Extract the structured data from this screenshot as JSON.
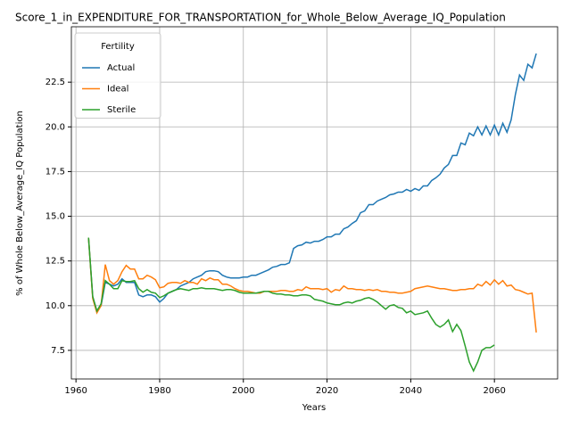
{
  "chart_data": {
    "type": "line",
    "title": "Score_1_in_EXPENDITURE_FOR_TRANSPORTATION_for_Whole_Below_Average_IQ_Population",
    "x_label": "Years",
    "y_label": "% of Whole Below_Average_IQ Population",
    "legend_title": "Fertility",
    "legend_position": "upper left",
    "grid": true,
    "xlim": [
      1958.9,
      2075.1
    ],
    "ylim": [
      5.9,
      25.6
    ],
    "xticks": [
      1960,
      1980,
      2000,
      2020,
      2040,
      2060
    ],
    "yticks": [
      7.5,
      {
        "value": 10,
        "label": "10.0"
      },
      12.5,
      {
        "value": 15,
        "label": "15.0"
      },
      17.5,
      {
        "value": 20,
        "label": "20.0"
      },
      22.5
    ],
    "x": [
      1963,
      1964,
      1965,
      1966,
      1967,
      1968,
      1969,
      1970,
      1971,
      1972,
      1973,
      1974,
      1975,
      1976,
      1977,
      1978,
      1979,
      1980,
      1981,
      1982,
      1983,
      1984,
      1985,
      1986,
      1987,
      1988,
      1989,
      1990,
      1991,
      1992,
      1993,
      1994,
      1995,
      1996,
      1997,
      1998,
      1999,
      2000,
      2001,
      2002,
      2003,
      2004,
      2005,
      2006,
      2007,
      2008,
      2009,
      2010,
      2011,
      2012,
      2013,
      2014,
      2015,
      2016,
      2017,
      2018,
      2019,
      2020,
      2021,
      2022,
      2023,
      2024,
      2025,
      2026,
      2027,
      2028,
      2029,
      2030,
      2031,
      2032,
      2033,
      2034,
      2035,
      2036,
      2037,
      2038,
      2039,
      2040,
      2041,
      2042,
      2043,
      2044,
      2045,
      2046,
      2047,
      2048,
      2049,
      2050,
      2051,
      2052,
      2053,
      2054,
      2055,
      2056,
      2057,
      2058,
      2059,
      2060,
      2061,
      2062,
      2063,
      2064,
      2065,
      2066,
      2067,
      2068,
      2069,
      2070
    ],
    "series": [
      {
        "name": "Actual",
        "color": "#1f77b4",
        "values": [
          13.8,
          10.5,
          9.7,
          10.0,
          11.3,
          11.2,
          11.1,
          11.2,
          11.5,
          11.3,
          11.3,
          11.3,
          10.6,
          10.5,
          10.6,
          10.6,
          10.5,
          10.2,
          10.4,
          10.7,
          10.8,
          10.9,
          11.1,
          11.2,
          11.3,
          11.5,
          11.6,
          11.7,
          11.9,
          11.95,
          11.95,
          11.9,
          11.7,
          11.6,
          11.55,
          11.55,
          11.55,
          11.6,
          11.6,
          11.7,
          11.7,
          11.8,
          11.9,
          12.0,
          12.15,
          12.2,
          12.3,
          12.3,
          12.4,
          13.2,
          13.35,
          13.4,
          13.55,
          13.5,
          13.6,
          13.6,
          13.7,
          13.85,
          13.85,
          14.0,
          14.0,
          14.3,
          14.4,
          14.6,
          14.75,
          15.2,
          15.3,
          15.65,
          15.65,
          15.85,
          15.95,
          16.05,
          16.2,
          16.25,
          16.35,
          16.35,
          16.5,
          16.4,
          16.55,
          16.45,
          16.7,
          16.7,
          17.0,
          17.15,
          17.35,
          17.7,
          17.9,
          18.4,
          18.4,
          19.1,
          19.0,
          19.65,
          19.5,
          20.0,
          19.55,
          20.05,
          19.55,
          20.1,
          19.55,
          20.2,
          19.7,
          20.4,
          21.8,
          22.9,
          22.6,
          23.5,
          23.3,
          24.1
        ]
      },
      {
        "name": "Ideal",
        "color": "#ff7f0e",
        "values": [
          13.8,
          10.4,
          9.6,
          10.0,
          12.3,
          11.4,
          11.2,
          11.4,
          11.9,
          12.25,
          12.05,
          12.05,
          11.5,
          11.5,
          11.7,
          11.6,
          11.45,
          11.0,
          11.05,
          11.25,
          11.3,
          11.3,
          11.25,
          11.4,
          11.3,
          11.3,
          11.2,
          11.5,
          11.4,
          11.55,
          11.45,
          11.45,
          11.2,
          11.2,
          11.1,
          10.95,
          10.85,
          10.8,
          10.8,
          10.75,
          10.7,
          10.7,
          10.8,
          10.8,
          10.8,
          10.8,
          10.85,
          10.85,
          10.8,
          10.8,
          10.9,
          10.85,
          11.05,
          10.95,
          10.95,
          10.95,
          10.9,
          10.95,
          10.75,
          10.9,
          10.85,
          11.1,
          10.95,
          10.95,
          10.9,
          10.9,
          10.85,
          10.9,
          10.85,
          10.9,
          10.8,
          10.8,
          10.75,
          10.75,
          10.7,
          10.7,
          10.75,
          10.8,
          10.95,
          11.0,
          11.05,
          11.1,
          11.05,
          11.0,
          10.95,
          10.95,
          10.9,
          10.85,
          10.85,
          10.9,
          10.9,
          10.95,
          10.95,
          11.2,
          11.1,
          11.35,
          11.15,
          11.45,
          11.2,
          11.4,
          11.1,
          11.15,
          10.9,
          10.85,
          10.75,
          10.65,
          10.7,
          8.5
        ]
      },
      {
        "name": "Sterile",
        "color": "#2ca02c",
        "values": [
          13.8,
          10.5,
          9.7,
          10.1,
          11.4,
          11.2,
          10.95,
          10.95,
          11.4,
          11.35,
          11.35,
          11.4,
          10.95,
          10.75,
          10.9,
          10.75,
          10.7,
          10.45,
          10.55,
          10.7,
          10.8,
          10.9,
          10.95,
          10.9,
          10.85,
          10.95,
          10.95,
          11.0,
          10.95,
          10.95,
          10.95,
          10.9,
          10.85,
          10.9,
          10.9,
          10.85,
          10.75,
          10.7,
          10.7,
          10.7,
          10.7,
          10.75,
          10.8,
          10.8,
          10.7,
          10.65,
          10.65,
          10.6,
          10.6,
          10.55,
          10.55,
          10.6,
          10.6,
          10.55,
          10.35,
          10.3,
          10.25,
          10.15,
          10.1,
          10.05,
          10.05,
          10.15,
          10.2,
          10.15,
          10.25,
          10.3,
          10.4,
          10.45,
          10.35,
          10.2,
          10.0,
          9.8,
          10.0,
          10.05,
          9.9,
          9.85,
          9.6,
          9.7,
          9.5,
          9.55,
          9.6,
          9.7,
          9.3,
          8.95,
          8.8,
          8.95,
          9.2,
          8.55,
          8.95,
          8.6,
          7.75,
          6.85,
          6.35,
          6.85,
          7.5,
          7.65,
          7.65,
          7.8,
          null,
          null,
          null,
          null,
          null,
          null,
          null,
          null,
          null,
          null
        ]
      }
    ]
  }
}
